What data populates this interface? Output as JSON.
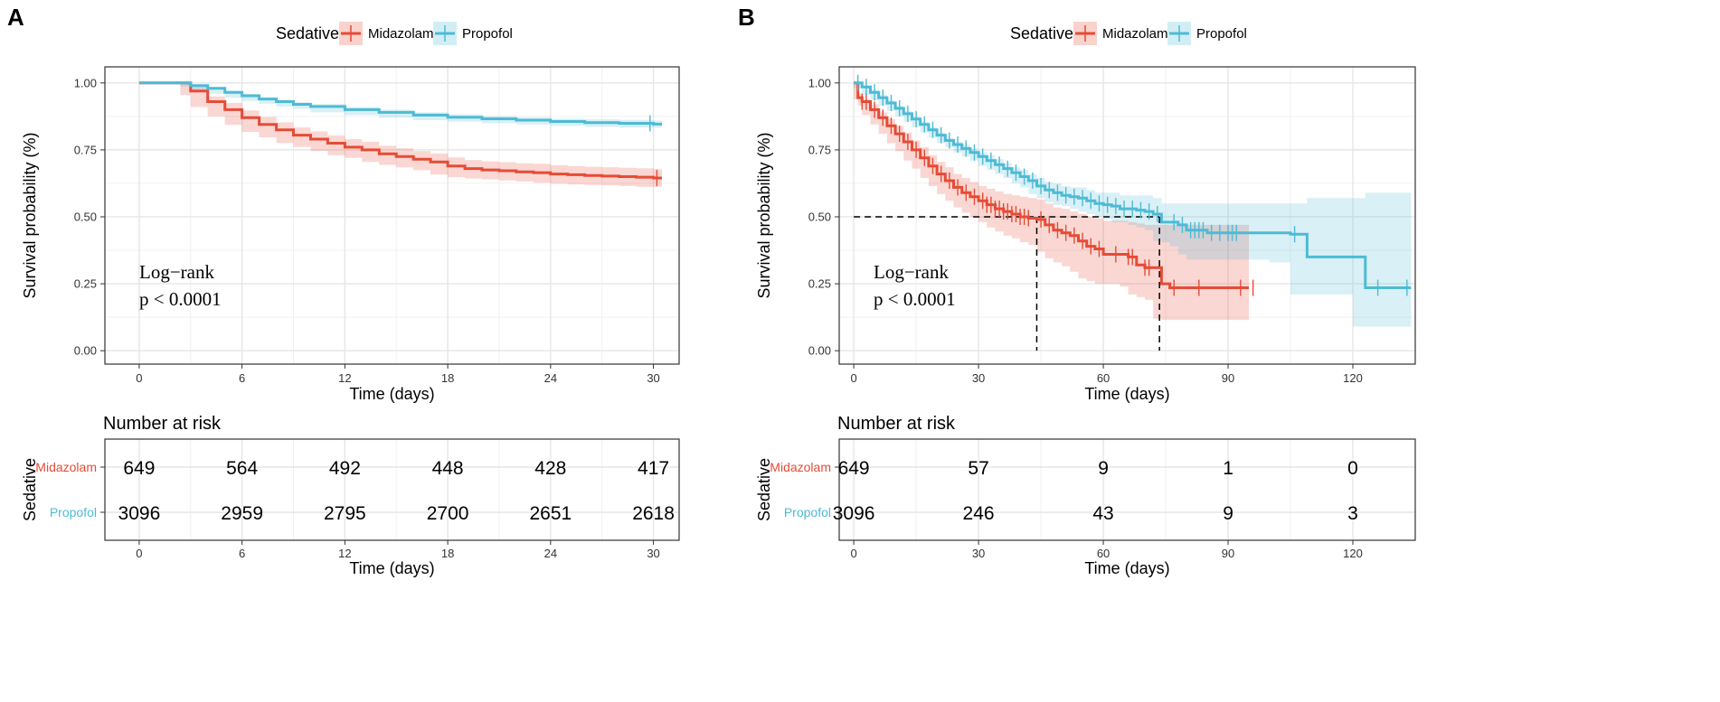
{
  "colors": {
    "midazolam": "#E64B35",
    "propofol": "#4DBBD5",
    "grid": "#e6e6e6",
    "axis": "#333333"
  },
  "chart_data": [
    {
      "panel": "A",
      "type": "line",
      "subtype": "kaplan-meier",
      "legend": {
        "title": "Sedative",
        "entries": [
          "Midazolam",
          "Propofol"
        ],
        "position": "top"
      },
      "xlabel": "Time (days)",
      "ylabel": "Survival probability (%)",
      "xlim": [
        -2,
        31.5
      ],
      "ylim": [
        -0.05,
        1.06
      ],
      "xticks": [
        0,
        6,
        12,
        18,
        24,
        30
      ],
      "yticks": [
        0.0,
        0.25,
        0.5,
        0.75,
        1.0
      ],
      "ytick_labels": [
        "0.00",
        "0.25",
        "0.50",
        "0.75",
        "1.00"
      ],
      "annotation": [
        "Log−rank",
        "p < 0.0001"
      ],
      "series": [
        {
          "name": "Midazolam",
          "x": [
            0,
            2.4,
            3,
            4,
            5,
            6,
            7,
            8,
            9,
            10,
            11,
            12,
            13,
            14,
            15,
            16,
            17,
            18,
            19,
            20,
            21,
            22,
            23,
            24,
            25,
            26,
            27,
            28,
            29,
            30,
            30.5
          ],
          "y": [
            1.0,
            1.0,
            0.97,
            0.93,
            0.9,
            0.87,
            0.845,
            0.825,
            0.805,
            0.79,
            0.775,
            0.76,
            0.75,
            0.735,
            0.725,
            0.715,
            0.705,
            0.69,
            0.68,
            0.675,
            0.672,
            0.668,
            0.665,
            0.66,
            0.657,
            0.654,
            0.652,
            0.65,
            0.648,
            0.645,
            0.645
          ],
          "lower": [
            1.0,
            1.0,
            0.955,
            0.91,
            0.875,
            0.843,
            0.817,
            0.797,
            0.776,
            0.761,
            0.746,
            0.73,
            0.72,
            0.705,
            0.694,
            0.684,
            0.674,
            0.658,
            0.648,
            0.643,
            0.64,
            0.636,
            0.632,
            0.627,
            0.624,
            0.621,
            0.619,
            0.617,
            0.615,
            0.612,
            0.612
          ],
          "upper": [
            1.0,
            1.0,
            0.985,
            0.95,
            0.925,
            0.897,
            0.873,
            0.853,
            0.834,
            0.819,
            0.804,
            0.79,
            0.78,
            0.765,
            0.756,
            0.746,
            0.736,
            0.722,
            0.712,
            0.707,
            0.704,
            0.7,
            0.698,
            0.693,
            0.69,
            0.687,
            0.685,
            0.683,
            0.681,
            0.678,
            0.678
          ],
          "censor_x": [
            30.2
          ]
        },
        {
          "name": "Propofol",
          "x": [
            0,
            2.4,
            3,
            4,
            5,
            6,
            7,
            8,
            9,
            10,
            12,
            14,
            16,
            18,
            20,
            22,
            24,
            26,
            28,
            30,
            30.5
          ],
          "y": [
            1.0,
            1.0,
            0.99,
            0.98,
            0.965,
            0.952,
            0.94,
            0.93,
            0.92,
            0.912,
            0.9,
            0.89,
            0.88,
            0.872,
            0.866,
            0.861,
            0.856,
            0.852,
            0.849,
            0.846,
            0.846
          ],
          "lower": [
            1.0,
            1.0,
            0.986,
            0.975,
            0.959,
            0.945,
            0.933,
            0.922,
            0.912,
            0.903,
            0.89,
            0.88,
            0.87,
            0.861,
            0.855,
            0.85,
            0.845,
            0.84,
            0.836,
            0.833,
            0.833
          ],
          "upper": [
            1.0,
            1.0,
            0.994,
            0.985,
            0.971,
            0.959,
            0.947,
            0.938,
            0.928,
            0.921,
            0.91,
            0.9,
            0.89,
            0.883,
            0.877,
            0.872,
            0.867,
            0.864,
            0.862,
            0.859,
            0.859
          ],
          "censor_x": [
            29.8
          ]
        }
      ],
      "risk_table": {
        "title": "Number at risk",
        "ylabel": "Sedative",
        "xlabel": "Time (days)",
        "times": [
          0,
          6,
          12,
          18,
          24,
          30
        ],
        "rows": [
          {
            "name": "Midazolam",
            "counts": [
              "649",
              "564",
              "492",
              "448",
              "428",
              "417"
            ]
          },
          {
            "name": "Propofol",
            "counts": [
              "3096",
              "2959",
              "2795",
              "2700",
              "2651",
              "2618"
            ]
          }
        ]
      }
    },
    {
      "panel": "B",
      "type": "line",
      "subtype": "kaplan-meier",
      "legend": {
        "title": "Sedative",
        "entries": [
          "Midazolam",
          "Propofol"
        ],
        "position": "top"
      },
      "xlabel": "Time (days)",
      "ylabel": "Survival probability (%)",
      "xlim": [
        -3.5,
        135
      ],
      "ylim": [
        -0.05,
        1.06
      ],
      "xticks": [
        0,
        30,
        60,
        90,
        120
      ],
      "yticks": [
        0.0,
        0.25,
        0.5,
        0.75,
        1.0
      ],
      "ytick_labels": [
        "0.00",
        "0.25",
        "0.50",
        "0.75",
        "1.00"
      ],
      "annotation": [
        "Log−rank",
        "p < 0.0001"
      ],
      "median_lines": [
        {
          "series": "Midazolam",
          "median_x": 44,
          "y": 0.5
        },
        {
          "series": "Propofol",
          "median_x": 73.5,
          "y": 0.5
        }
      ],
      "series": [
        {
          "name": "Midazolam",
          "x": [
            0,
            1,
            2,
            4,
            6,
            8,
            10,
            12,
            14,
            16,
            18,
            20,
            22,
            24,
            26,
            28,
            30,
            32,
            34,
            36,
            38,
            40,
            42,
            44,
            46,
            48,
            50,
            52,
            54,
            56,
            58,
            60,
            62,
            64,
            66,
            68,
            70,
            72,
            74,
            76,
            78,
            80,
            85,
            90,
            95
          ],
          "y": [
            1.0,
            0.945,
            0.93,
            0.9,
            0.87,
            0.84,
            0.81,
            0.78,
            0.75,
            0.72,
            0.69,
            0.66,
            0.635,
            0.61,
            0.59,
            0.575,
            0.56,
            0.545,
            0.53,
            0.52,
            0.51,
            0.5,
            0.495,
            0.49,
            0.47,
            0.45,
            0.44,
            0.43,
            0.41,
            0.39,
            0.38,
            0.36,
            0.36,
            0.36,
            0.35,
            0.32,
            0.31,
            0.31,
            0.25,
            0.235,
            0.235,
            0.235,
            0.235,
            0.235,
            0.235
          ],
          "lower": [
            1.0,
            0.94,
            0.915,
            0.88,
            0.845,
            0.81,
            0.775,
            0.745,
            0.71,
            0.68,
            0.645,
            0.615,
            0.585,
            0.56,
            0.535,
            0.515,
            0.5,
            0.48,
            0.46,
            0.445,
            0.43,
            0.42,
            0.405,
            0.395,
            0.37,
            0.345,
            0.33,
            0.315,
            0.295,
            0.27,
            0.26,
            0.25,
            0.25,
            0.25,
            0.24,
            0.21,
            0.2,
            0.19,
            0.12,
            0.115,
            0.115,
            0.115,
            0.115,
            0.115,
            0.115
          ],
          "upper": [
            1.0,
            0.96,
            0.94,
            0.92,
            0.89,
            0.865,
            0.84,
            0.815,
            0.785,
            0.76,
            0.73,
            0.705,
            0.685,
            0.66,
            0.645,
            0.63,
            0.615,
            0.605,
            0.595,
            0.585,
            0.58,
            0.575,
            0.57,
            0.565,
            0.55,
            0.535,
            0.53,
            0.52,
            0.51,
            0.5,
            0.495,
            0.485,
            0.485,
            0.485,
            0.48,
            0.475,
            0.47,
            0.47,
            0.47,
            0.47,
            0.47,
            0.47,
            0.47,
            0.47,
            0.47
          ],
          "censor_x": [
            2,
            3,
            5,
            7,
            9,
            11,
            13,
            15,
            17,
            19,
            21,
            23,
            25,
            27,
            29,
            31,
            32,
            33,
            34,
            35,
            36,
            37,
            38,
            39,
            40,
            41,
            42,
            45,
            47,
            49,
            51,
            53,
            55,
            57,
            59,
            63,
            66,
            67,
            70,
            71,
            77,
            83,
            93,
            96
          ]
        },
        {
          "name": "Propofol",
          "x": [
            0,
            2,
            4,
            6,
            8,
            10,
            12,
            14,
            16,
            18,
            20,
            22,
            24,
            26,
            28,
            30,
            32,
            34,
            36,
            38,
            40,
            42,
            44,
            46,
            48,
            50,
            52,
            54,
            56,
            58,
            60,
            62,
            64,
            66,
            68,
            70,
            72,
            74,
            76,
            78,
            80,
            85,
            90,
            95,
            100,
            105,
            109,
            115,
            120,
            123,
            130,
            134
          ],
          "y": [
            1.0,
            0.985,
            0.965,
            0.945,
            0.925,
            0.905,
            0.885,
            0.865,
            0.845,
            0.825,
            0.805,
            0.785,
            0.77,
            0.755,
            0.74,
            0.725,
            0.71,
            0.695,
            0.68,
            0.665,
            0.65,
            0.635,
            0.615,
            0.6,
            0.59,
            0.58,
            0.575,
            0.57,
            0.56,
            0.55,
            0.545,
            0.54,
            0.53,
            0.53,
            0.525,
            0.52,
            0.51,
            0.48,
            0.48,
            0.47,
            0.45,
            0.44,
            0.44,
            0.44,
            0.44,
            0.435,
            0.35,
            0.35,
            0.35,
            0.235,
            0.235,
            0.235
          ],
          "lower": [
            1.0,
            0.98,
            0.955,
            0.935,
            0.915,
            0.895,
            0.875,
            0.855,
            0.835,
            0.815,
            0.795,
            0.775,
            0.76,
            0.74,
            0.725,
            0.71,
            0.69,
            0.675,
            0.66,
            0.645,
            0.625,
            0.61,
            0.585,
            0.57,
            0.555,
            0.545,
            0.54,
            0.53,
            0.52,
            0.51,
            0.5,
            0.49,
            0.48,
            0.48,
            0.47,
            0.46,
            0.45,
            0.41,
            0.405,
            0.39,
            0.36,
            0.34,
            0.34,
            0.34,
            0.34,
            0.33,
            0.21,
            0.21,
            0.21,
            0.09,
            0.09,
            0.09
          ],
          "upper": [
            1.0,
            0.99,
            0.975,
            0.955,
            0.935,
            0.915,
            0.895,
            0.875,
            0.855,
            0.835,
            0.815,
            0.795,
            0.78,
            0.77,
            0.755,
            0.74,
            0.73,
            0.715,
            0.7,
            0.685,
            0.675,
            0.66,
            0.645,
            0.63,
            0.625,
            0.615,
            0.61,
            0.61,
            0.6,
            0.59,
            0.59,
            0.59,
            0.58,
            0.58,
            0.58,
            0.58,
            0.57,
            0.55,
            0.55,
            0.55,
            0.55,
            0.55,
            0.55,
            0.55,
            0.55,
            0.55,
            0.57,
            0.57,
            0.57,
            0.59,
            0.59,
            0.59
          ],
          "censor_x": [
            1,
            3,
            5,
            7,
            9,
            11,
            13,
            15,
            17,
            19,
            21,
            23,
            25,
            27,
            29,
            31,
            33,
            35,
            37,
            39,
            41,
            43,
            45,
            47,
            49,
            51,
            53,
            55,
            57,
            59,
            61,
            63,
            65,
            67,
            69,
            71,
            73,
            77,
            79,
            81,
            82,
            83,
            84,
            86,
            88,
            90,
            91,
            92,
            106,
            126,
            133
          ]
        }
      ],
      "risk_table": {
        "title": "Number at risk",
        "ylabel": "Sedative",
        "xlabel": "Time (days)",
        "times": [
          0,
          30,
          60,
          90,
          120
        ],
        "rows": [
          {
            "name": "Midazolam",
            "counts": [
              "649",
              "57",
              "9",
              "1",
              "0"
            ]
          },
          {
            "name": "Propofol",
            "counts": [
              "3096",
              "246",
              "43",
              "9",
              "3"
            ]
          }
        ]
      }
    }
  ]
}
